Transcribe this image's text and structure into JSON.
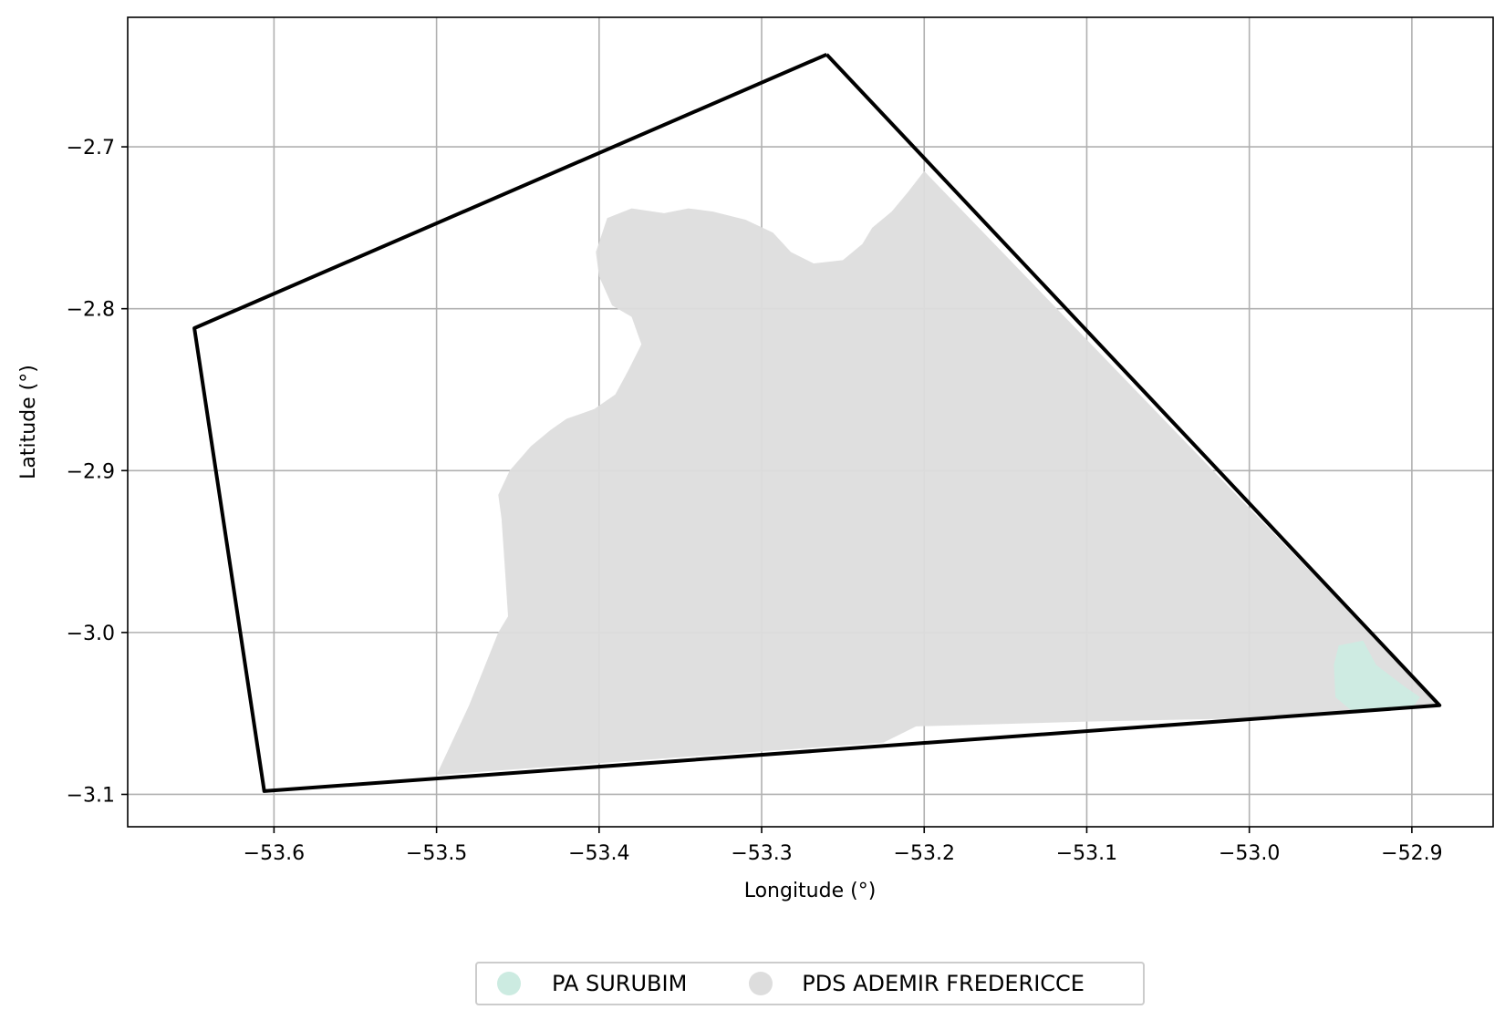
{
  "chart_data": {
    "type": "map",
    "xlabel": "Longitude (°)",
    "ylabel": "Latitude (°)",
    "xlim": [
      -53.69,
      -52.85
    ],
    "ylim": [
      -3.12,
      -2.62
    ],
    "xticks": [
      -53.6,
      -53.5,
      -53.4,
      -53.3,
      -53.2,
      -53.1,
      -53.0,
      -52.9
    ],
    "xtick_labels": [
      "−53.6",
      "−53.5",
      "−53.4",
      "−53.3",
      "−53.2",
      "−53.1",
      "−53.0",
      "−52.9"
    ],
    "yticks": [
      -2.7,
      -2.8,
      -2.9,
      -3.0,
      -3.1
    ],
    "ytick_labels": [
      "−2.7",
      "−2.8",
      "−2.9",
      "−3.0",
      "−3.1"
    ],
    "grid": true,
    "legend_position": "bottom-center",
    "boundary": {
      "color": "#000000",
      "points": [
        [
          -53.26,
          -2.643
        ],
        [
          -52.883,
          -3.045
        ],
        [
          -53.606,
          -3.098
        ],
        [
          -53.649,
          -2.812
        ],
        [
          -53.26,
          -2.643
        ]
      ]
    },
    "series": [
      {
        "name": "PDS ADEMIR FREDERICCE",
        "color": "#dddddd",
        "polygon": [
          [
            -53.395,
            -2.744
          ],
          [
            -53.38,
            -2.738
          ],
          [
            -53.36,
            -2.741
          ],
          [
            -53.345,
            -2.738
          ],
          [
            -53.33,
            -2.74
          ],
          [
            -53.31,
            -2.745
          ],
          [
            -53.293,
            -2.753
          ],
          [
            -53.282,
            -2.765
          ],
          [
            -53.268,
            -2.772
          ],
          [
            -53.25,
            -2.77
          ],
          [
            -53.238,
            -2.76
          ],
          [
            -53.232,
            -2.75
          ],
          [
            -53.22,
            -2.74
          ],
          [
            -53.21,
            -2.728
          ],
          [
            -53.2,
            -2.715
          ],
          [
            -52.883,
            -3.045
          ],
          [
            -53.0,
            -3.053
          ],
          [
            -53.1,
            -3.055
          ],
          [
            -53.205,
            -3.058
          ],
          [
            -53.225,
            -3.068
          ],
          [
            -53.5,
            -3.088
          ],
          [
            -53.48,
            -3.045
          ],
          [
            -53.462,
            -3.0
          ],
          [
            -53.456,
            -2.99
          ],
          [
            -53.458,
            -2.96
          ],
          [
            -53.46,
            -2.93
          ],
          [
            -53.462,
            -2.915
          ],
          [
            -53.455,
            -2.9
          ],
          [
            -53.442,
            -2.885
          ],
          [
            -53.43,
            -2.875
          ],
          [
            -53.42,
            -2.868
          ],
          [
            -53.403,
            -2.862
          ],
          [
            -53.39,
            -2.853
          ],
          [
            -53.382,
            -2.838
          ],
          [
            -53.374,
            -2.822
          ],
          [
            -53.38,
            -2.805
          ],
          [
            -53.392,
            -2.798
          ],
          [
            -53.4,
            -2.78
          ],
          [
            -53.402,
            -2.765
          ],
          [
            -53.395,
            -2.744
          ]
        ]
      },
      {
        "name": "PA SURUBIM",
        "color": "#ccebe1",
        "polygon": [
          [
            -52.945,
            -3.008
          ],
          [
            -52.93,
            -3.005
          ],
          [
            -52.922,
            -3.02
          ],
          [
            -52.905,
            -3.033
          ],
          [
            -52.895,
            -3.04
          ],
          [
            -52.9,
            -3.047
          ],
          [
            -52.935,
            -3.05
          ],
          [
            -52.947,
            -3.04
          ],
          [
            -52.948,
            -3.02
          ],
          [
            -52.945,
            -3.008
          ]
        ]
      }
    ]
  }
}
